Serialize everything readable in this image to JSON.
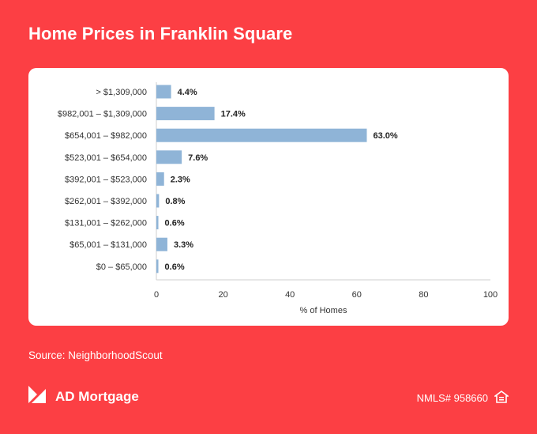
{
  "header": {
    "title": "Home Prices in Franklin Square"
  },
  "chart_data": {
    "type": "bar",
    "orientation": "horizontal",
    "categories": [
      "> $1,309,000",
      "$982,001 – $1,309,000",
      "$654,001 – $982,000",
      "$523,001 – $654,000",
      "$392,001 – $523,000",
      "$262,001 – $392,000",
      "$131,001 – $262,000",
      "$65,001 – $131,000",
      "$0 – $65,000"
    ],
    "values": [
      4.4,
      17.4,
      63.0,
      7.6,
      2.3,
      0.8,
      0.6,
      3.3,
      0.6
    ],
    "value_labels": [
      "4.4%",
      "17.4%",
      "63.0%",
      "7.6%",
      "2.3%",
      "0.8%",
      "0.6%",
      "3.3%",
      "0.6%"
    ],
    "xlabel": "% of Homes",
    "ylabel": "",
    "xlim": [
      0,
      100
    ],
    "xticks": [
      "0",
      "20",
      "40",
      "60",
      "80",
      "100"
    ],
    "grid": false,
    "bar_color": "#8fb4d7"
  },
  "footer": {
    "source": "Source: NeighborhoodScout",
    "brand_name": "AD Mortgage",
    "nmls": "NMLS# 958660",
    "logo_icon": "ad-mortgage-logo-icon",
    "housing_icon": "equal-housing-icon"
  },
  "colors": {
    "background": "#fc3f44",
    "card": "#ffffff",
    "bar": "#8fb4d7"
  }
}
